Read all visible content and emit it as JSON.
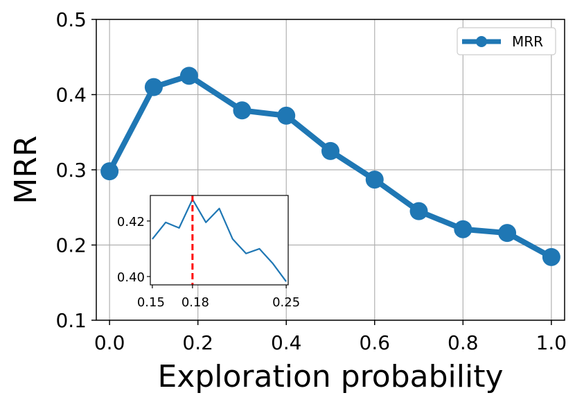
{
  "chart_data": [
    {
      "type": "line",
      "x": [
        0.0,
        0.1,
        0.18,
        0.3,
        0.4,
        0.5,
        0.6,
        0.7,
        0.8,
        0.9,
        1.0
      ],
      "series": [
        {
          "name": "MRR",
          "values": [
            0.298,
            0.41,
            0.425,
            0.379,
            0.372,
            0.325,
            0.287,
            0.245,
            0.221,
            0.216,
            0.184
          ],
          "color": "#1f77b4"
        }
      ],
      "title": "",
      "xlabel": "Exploration probability",
      "ylabel": "MRR",
      "xlim": [
        -0.03,
        1.03
      ],
      "ylim": [
        0.1,
        0.5
      ],
      "xticks": [
        "0.0",
        "0.2",
        "0.4",
        "0.6",
        "0.8",
        "1.0"
      ],
      "yticks": [
        "0.1",
        "0.2",
        "0.3",
        "0.4",
        "0.5"
      ],
      "grid": true,
      "legend": "top-right",
      "markers": true
    },
    {
      "type": "line",
      "role": "inset",
      "x": [
        0.15,
        0.16,
        0.17,
        0.18,
        0.19,
        0.2,
        0.21,
        0.22,
        0.23,
        0.24,
        0.25
      ],
      "series": [
        {
          "values": [
            0.4135,
            0.4195,
            0.4175,
            0.4278,
            0.4195,
            0.4245,
            0.4135,
            0.4083,
            0.41,
            0.4047,
            0.3982
          ],
          "color": "#1f77b4"
        }
      ],
      "xticks": [
        "0.15",
        "0.18",
        "0.25"
      ],
      "yticks": [
        "0.40",
        "0.42"
      ],
      "xlim": [
        0.1485,
        0.2515
      ],
      "ylim": [
        0.397,
        0.4292
      ],
      "vline": {
        "x": 0.18,
        "color": "#ff0000",
        "style": "dashed"
      },
      "grid": false
    }
  ]
}
